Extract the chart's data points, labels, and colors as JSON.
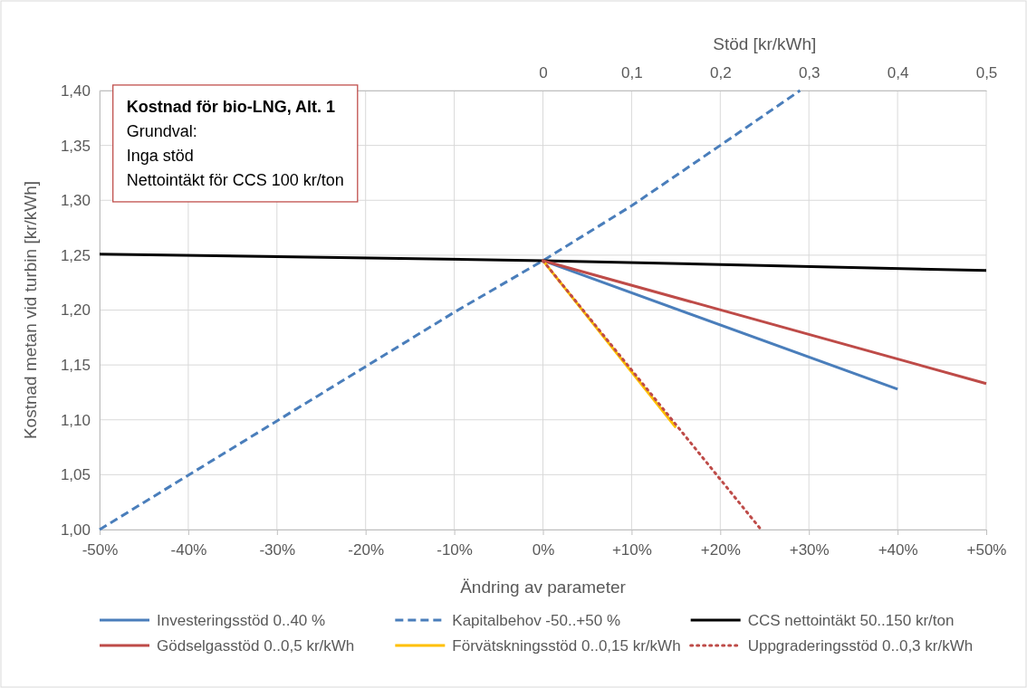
{
  "chart_data": {
    "type": "line",
    "xlabel": "Ändring av parameter",
    "ylabel": "Kostnad metan vid turbin [kr/kWh]",
    "x2label": "Stöd [kr/kWh]",
    "annotations": [
      "Kostnad för bio-LNG, Alt. 1",
      "Grundval:",
      "Inga stöd",
      "Nettointäkt för CCS 100 kr/ton"
    ],
    "xlim": [
      -50,
      50
    ],
    "xticks": [
      {
        "value": -50,
        "label": "-50%"
      },
      {
        "value": -40,
        "label": "-40%"
      },
      {
        "value": -30,
        "label": "-30%"
      },
      {
        "value": -20,
        "label": "-20%"
      },
      {
        "value": -10,
        "label": "-10%"
      },
      {
        "value": 0,
        "label": "0%"
      },
      {
        "value": 10,
        "label": "+10%"
      },
      {
        "value": 20,
        "label": "+20%"
      },
      {
        "value": 30,
        "label": "+30%"
      },
      {
        "value": 40,
        "label": "+40%"
      },
      {
        "value": 50,
        "label": "+50%"
      }
    ],
    "x2lim": [
      -0.5,
      0.5
    ],
    "x2ticks": [
      0,
      {
        "value": 0.1,
        "label": "0,1"
      },
      {
        "value": 0.2,
        "label": "0,2"
      },
      {
        "value": 0.3,
        "label": "0,3"
      },
      {
        "value": 0.4,
        "label": "0,4"
      },
      {
        "value": 0.5,
        "label": "0,5"
      }
    ],
    "ylim": [
      1.0,
      1.4
    ],
    "yticks": [
      {
        "value": 1.0,
        "label": "1,00"
      },
      {
        "value": 1.05,
        "label": "1,05"
      },
      {
        "value": 1.1,
        "label": "1,10"
      },
      {
        "value": 1.15,
        "label": "1,15"
      },
      {
        "value": 1.2,
        "label": "1,20"
      },
      {
        "value": 1.25,
        "label": "1,25"
      },
      {
        "value": 1.3,
        "label": "1,30"
      },
      {
        "value": 1.35,
        "label": "1,35"
      },
      {
        "value": 1.4,
        "label": "1,40"
      }
    ],
    "grid": true,
    "legend": "bottom",
    "series": [
      {
        "name": "Investeringsstöd 0..40 %",
        "color": "#4a7ebb",
        "line_style": "solid",
        "x": [
          0,
          40
        ],
        "values": [
          1.245,
          1.128
        ]
      },
      {
        "name": "Kapitalbehov -50..+50 %",
        "color": "#4a7ebb",
        "line_style": "dashed",
        "x": [
          -50,
          -10,
          0,
          10,
          20,
          29
        ],
        "values": [
          1.0,
          1.198,
          1.245,
          1.295,
          1.35,
          1.4
        ]
      },
      {
        "name": "CCS nettointäkt 50..150 kr/ton",
        "color": "#000000",
        "line_style": "solid",
        "x": [
          -50,
          0,
          50
        ],
        "values": [
          1.251,
          1.245,
          1.236
        ]
      },
      {
        "name": "Gödselgasstöd 0..0,5 kr/kWh",
        "color": "#be4b48",
        "line_style": "solid",
        "x": [
          0,
          50
        ],
        "values": [
          1.245,
          1.133
        ]
      },
      {
        "name": "Förvätskningsstöd 0..0,15 kr/kWh",
        "color": "#ffc000",
        "line_style": "solid",
        "x": [
          0,
          15
        ],
        "values": [
          1.245,
          1.093
        ]
      },
      {
        "name": "Uppgraderingsstöd 0..0,3 kr/kWh",
        "color": "#be4b48",
        "line_style": "dotted",
        "x": [
          0,
          24.6
        ],
        "values": [
          1.245,
          1.0
        ]
      }
    ]
  }
}
